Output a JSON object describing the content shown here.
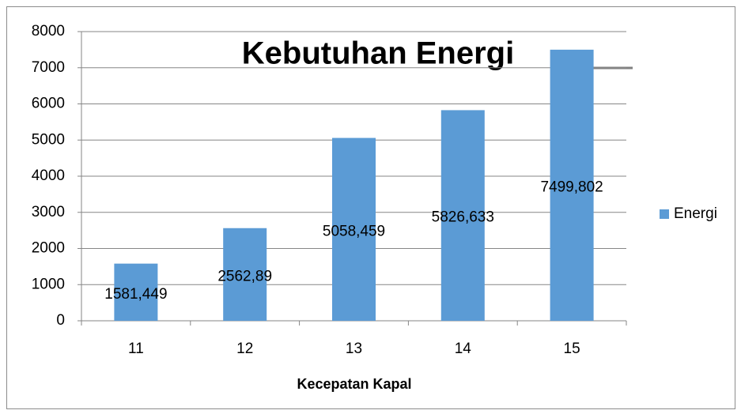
{
  "chart_data": {
    "type": "bar",
    "title": "Kebutuhan Energi",
    "x_label": "Kecepatan Kapal",
    "categories": [
      "11",
      "12",
      "13",
      "14",
      "15"
    ],
    "series": [
      {
        "name": "Energi",
        "color": "#5b9bd5",
        "values": [
          1581.449,
          2562.89,
          5058.459,
          5826.633,
          7499.802
        ],
        "value_labels": [
          "1581,449",
          "2562,89",
          "5058,459",
          "5826,633",
          "7499,802"
        ]
      }
    ],
    "ylim": [
      0,
      8000
    ],
    "yticks": [
      0,
      1000,
      2000,
      3000,
      4000,
      5000,
      6000,
      7000,
      8000
    ],
    "grid": true,
    "legend": "right"
  }
}
